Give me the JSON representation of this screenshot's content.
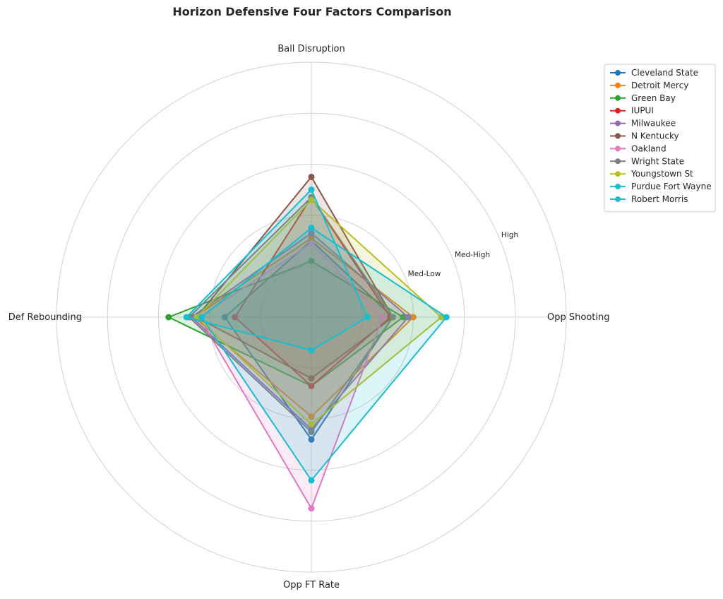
{
  "chart_data": {
    "type": "radar",
    "title": "Horizon Defensive Four Factors Comparison",
    "axes": [
      "Ball Disruption",
      "Opp Shooting",
      "Opp FT Rate",
      "Def Rebounding"
    ],
    "ring_labels": [
      "Med-Low",
      "Med-High",
      "High"
    ],
    "range": [
      0,
      5
    ],
    "grid": true,
    "legend_position": "top-right",
    "series": [
      {
        "name": "Cleveland State",
        "color": "#1f77b4",
        "values": [
          1.5,
          1.6,
          2.4,
          1.7
        ]
      },
      {
        "name": "Detroit Mercy",
        "color": "#ff7f0e",
        "values": [
          1.55,
          2.0,
          1.95,
          2.3
        ]
      },
      {
        "name": "Green Bay",
        "color": "#2ca02c",
        "values": [
          1.1,
          1.8,
          1.35,
          2.8
        ]
      },
      {
        "name": "IUPUI",
        "color": "#d62728",
        "values": [
          2.35,
          1.55,
          1.35,
          1.5
        ]
      },
      {
        "name": "Milwaukee",
        "color": "#9467bd",
        "values": [
          1.65,
          1.9,
          2.2,
          2.35
        ]
      },
      {
        "name": "N Kentucky",
        "color": "#8c564b",
        "values": [
          2.75,
          1.6,
          1.2,
          2.25
        ]
      },
      {
        "name": "Oakland",
        "color": "#e377c2",
        "values": [
          1.45,
          1.4,
          3.75,
          2.2
        ]
      },
      {
        "name": "Wright State",
        "color": "#7f7f7f",
        "values": [
          2.35,
          1.6,
          2.25,
          2.4
        ]
      },
      {
        "name": "Youngstown St",
        "color": "#bcbd22",
        "values": [
          2.3,
          2.55,
          2.1,
          2.25
        ]
      },
      {
        "name": "Purdue Fort Wayne",
        "color": "#17becf",
        "values": [
          1.75,
          2.65,
          3.2,
          2.15
        ]
      },
      {
        "name": "Robert Morris",
        "color": "#17becf",
        "values": [
          2.5,
          1.1,
          0.65,
          2.45
        ]
      }
    ]
  }
}
